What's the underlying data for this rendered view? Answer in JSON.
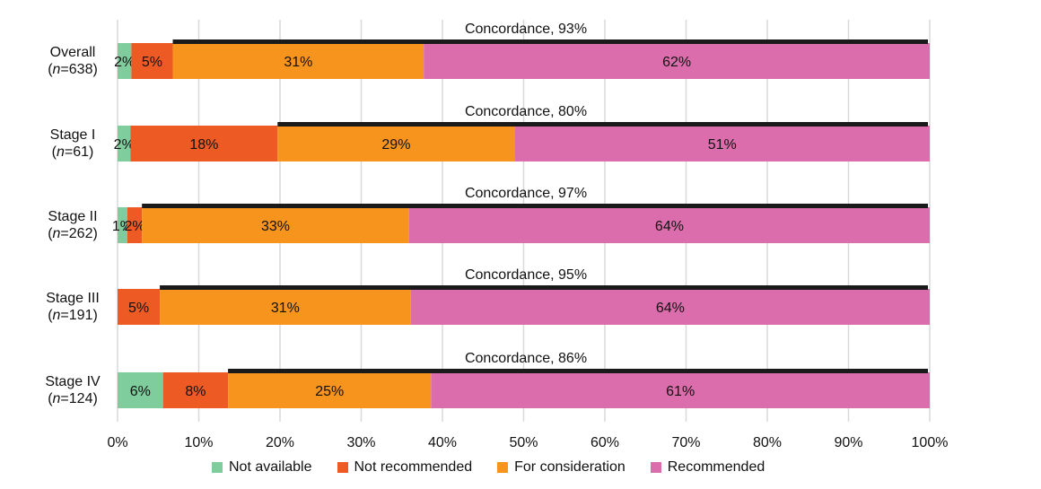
{
  "chart_data": {
    "type": "bar",
    "orientation": "horizontal",
    "stacked": true,
    "categories": [
      {
        "name": "Overall",
        "n": "638"
      },
      {
        "name": "Stage I",
        "n": "61"
      },
      {
        "name": "Stage II",
        "n": "262"
      },
      {
        "name": "Stage III",
        "n": "191"
      },
      {
        "name": "Stage IV",
        "n": "124"
      }
    ],
    "n_prefix": "n",
    "series": [
      {
        "name": "Not available",
        "color": "#7fcc9c",
        "values": [
          1.7,
          1.6,
          1.2,
          0,
          5.6
        ],
        "labels": [
          "2%",
          "2%",
          "1%",
          "",
          "6%"
        ]
      },
      {
        "name": "Not recommended",
        "color": "#ee5a24",
        "values": [
          5.1,
          18.1,
          1.8,
          5.2,
          8.0
        ],
        "labels": [
          "5%",
          "18%",
          "2%",
          "5%",
          "8%"
        ]
      },
      {
        "name": "For consideration",
        "color": "#f7941d",
        "values": [
          30.9,
          29.2,
          32.9,
          30.9,
          25.0
        ],
        "labels": [
          "31%",
          "29%",
          "33%",
          "31%",
          "25%"
        ]
      },
      {
        "name": "Recommended",
        "color": "#dc6dac",
        "values": [
          62.3,
          51.1,
          64.1,
          63.9,
          61.4
        ],
        "labels": [
          "62%",
          "51%",
          "64%",
          "64%",
          "61%"
        ]
      }
    ],
    "concordance": [
      {
        "label": "Concordance, 93%",
        "start": 6.8
      },
      {
        "label": "Concordance, 80%",
        "start": 19.7
      },
      {
        "label": "Concordance, 97%",
        "start": 3.0
      },
      {
        "label": "Concordance, 95%",
        "start": 5.2
      },
      {
        "label": "Concordance, 86%",
        "start": 13.6
      }
    ],
    "x_ticks": [
      "0%",
      "10%",
      "20%",
      "30%",
      "40%",
      "50%",
      "60%",
      "70%",
      "80%",
      "90%",
      "100%"
    ],
    "xlim": [
      0,
      100
    ],
    "grid": true,
    "legend_position": "bottom"
  }
}
